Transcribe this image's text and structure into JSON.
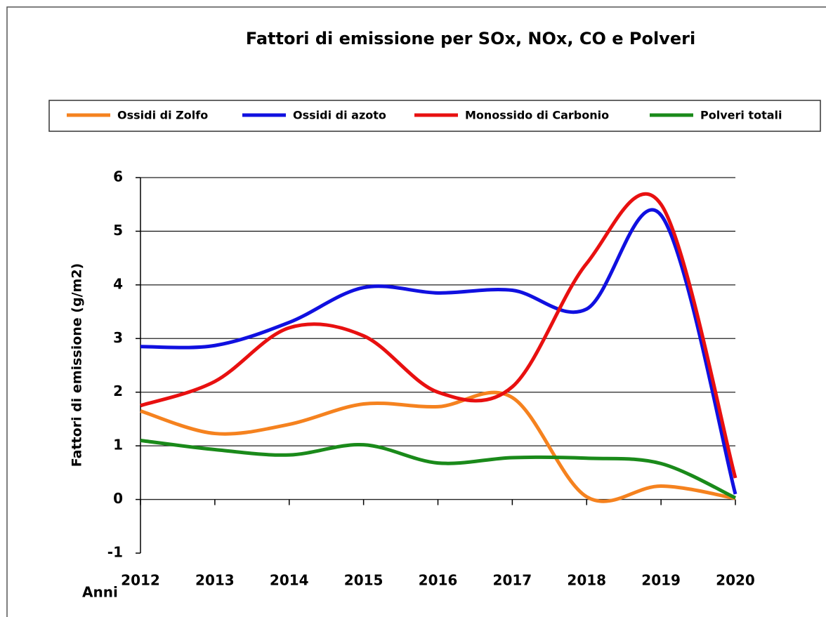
{
  "chart_data": {
    "type": "line",
    "title": "Fattori di emissione per SOx,  NOx, CO e Polveri",
    "y_label": "Fattori di emissione (g/m2)",
    "x_label": "Anni",
    "categories": [
      "2012",
      "2013",
      "2014",
      "2015",
      "2016",
      "2017",
      "2018",
      "2019",
      "2020"
    ],
    "series": [
      {
        "name": "Ossidi di Zolfo",
        "color": "#f5821f",
        "values": [
          1.65,
          1.23,
          1.4,
          1.78,
          1.73,
          1.9,
          0.05,
          0.25,
          0.02
        ]
      },
      {
        "name": "Ossidi di azoto",
        "color": "#1010e0",
        "values": [
          2.85,
          2.87,
          3.3,
          3.95,
          3.85,
          3.9,
          3.55,
          5.3,
          0.1
        ]
      },
      {
        "name": "Monossido di Carbonio",
        "color": "#e81010",
        "values": [
          1.75,
          2.2,
          3.2,
          3.05,
          2.0,
          2.1,
          4.4,
          5.5,
          0.4
        ]
      },
      {
        "name": "Polveri totali",
        "color": "#1a8a1a",
        "values": [
          1.1,
          0.93,
          0.83,
          1.02,
          0.68,
          0.78,
          0.77,
          0.67,
          0.03
        ]
      }
    ],
    "ylim": [
      -1,
      6
    ],
    "yticks": [
      -1,
      0,
      1,
      2,
      3,
      4,
      5,
      6
    ],
    "grid": true,
    "legend": "top"
  }
}
